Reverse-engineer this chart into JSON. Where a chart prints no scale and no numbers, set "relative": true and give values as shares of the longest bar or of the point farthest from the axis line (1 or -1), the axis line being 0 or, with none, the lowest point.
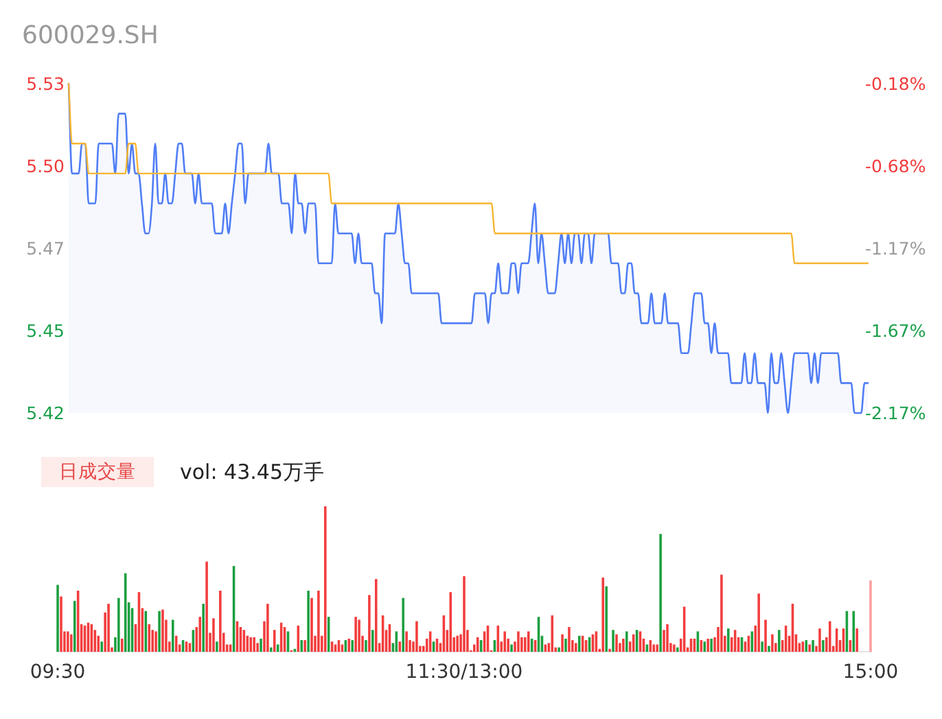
{
  "chart_data": [
    {
      "type": "area",
      "title": "600029.SH",
      "categories": [
        null,
        null,
        null,
        null,
        null,
        null,
        null,
        null,
        null,
        null,
        null,
        null,
        null,
        null,
        null,
        null,
        null,
        null,
        null,
        null,
        null,
        null,
        null,
        null,
        null,
        null,
        null,
        null,
        null,
        null,
        null,
        null,
        null,
        null,
        null,
        null,
        null,
        null,
        null,
        null,
        null,
        null,
        null,
        null,
        null,
        null,
        null,
        null,
        null,
        null,
        null,
        null,
        null,
        null,
        null,
        null,
        null,
        null,
        null,
        null,
        null,
        null,
        null,
        null,
        null,
        null,
        null,
        null,
        null,
        null,
        null,
        null,
        null,
        null,
        null,
        null,
        null,
        null,
        null,
        null,
        null,
        null,
        null,
        null,
        null,
        null,
        null,
        null,
        null,
        null,
        null,
        null,
        null,
        null,
        null,
        null,
        null,
        null,
        null,
        null,
        null,
        null,
        null,
        null,
        null,
        null,
        null,
        null,
        null,
        null,
        null,
        null,
        null,
        null,
        null,
        null,
        null,
        null,
        null,
        null,
        null,
        null,
        null,
        null,
        null,
        null,
        null,
        null,
        null,
        null,
        null,
        null,
        null,
        null,
        null,
        null,
        null,
        null,
        null,
        null,
        null,
        null,
        null,
        null,
        null,
        null,
        null,
        null,
        null,
        null,
        null,
        null,
        null,
        null,
        null,
        null,
        null,
        null,
        null,
        null,
        null,
        null,
        null,
        null,
        null,
        null,
        null,
        null,
        null,
        null,
        null,
        null,
        null,
        null,
        null,
        null,
        null,
        null,
        null,
        null,
        null,
        null,
        null,
        null,
        null,
        null,
        null,
        null,
        null,
        null,
        null,
        null,
        null,
        null,
        null,
        null,
        null,
        null,
        null,
        null,
        null,
        null,
        null,
        null,
        null,
        null,
        null,
        null,
        null,
        null,
        null,
        null,
        null,
        null,
        null,
        null,
        null,
        null,
        null,
        null,
        null,
        null,
        null,
        null,
        null,
        null,
        null,
        null,
        null,
        null,
        null,
        null,
        null,
        null,
        null,
        null,
        null,
        null,
        null,
        null,
        null
      ],
      "series": [
        {
          "color": "#4f7df5",
          "values": [
            5.53,
            5.5,
            5.5,
            5.5,
            5.51,
            5.51,
            5.49,
            5.49,
            5.49,
            5.51,
            5.51,
            5.51,
            5.51,
            5.51,
            5.5,
            5.52,
            5.52,
            5.52,
            5.5,
            5.51,
            5.5,
            5.5,
            5.49,
            5.48,
            5.48,
            5.49,
            5.51,
            5.49,
            5.49,
            5.5,
            5.49,
            5.49,
            5.5,
            5.51,
            5.51,
            5.5,
            5.5,
            5.5,
            5.49,
            5.5,
            5.49,
            5.49,
            5.49,
            5.49,
            5.48,
            5.48,
            5.48,
            5.49,
            5.48,
            5.49,
            5.5,
            5.51,
            5.51,
            5.49,
            5.5,
            5.5,
            5.5,
            5.5,
            5.5,
            5.5,
            5.51,
            5.5,
            5.5,
            5.5,
            5.49,
            5.49,
            5.49,
            5.48,
            5.5,
            5.49,
            5.49,
            5.48,
            5.49,
            5.49,
            5.49,
            5.47,
            5.47,
            5.47,
            5.47,
            5.47,
            5.49,
            5.48,
            5.48,
            5.48,
            5.48,
            5.48,
            5.47,
            5.48,
            5.47,
            5.47,
            5.47,
            5.47,
            5.46,
            5.46,
            5.45,
            5.48,
            5.48,
            5.48,
            5.48,
            5.49,
            5.48,
            5.47,
            5.47,
            5.46,
            5.46,
            5.46,
            5.46,
            5.46,
            5.46,
            5.46,
            5.46,
            5.46,
            5.45,
            5.45,
            5.45,
            5.45,
            5.45,
            5.45,
            5.45,
            5.45,
            5.45,
            5.45,
            5.46,
            5.46,
            5.46,
            5.46,
            5.45,
            5.46,
            5.46,
            5.47,
            5.46,
            5.46,
            5.46,
            5.47,
            5.47,
            5.46,
            5.47,
            5.47,
            5.47,
            5.48,
            5.49,
            5.47,
            5.48,
            5.47,
            5.46,
            5.46,
            5.46,
            5.47,
            5.48,
            5.47,
            5.48,
            5.47,
            5.48,
            5.48,
            5.47,
            5.48,
            5.48,
            5.47,
            5.48,
            5.48,
            5.48,
            5.48,
            5.48,
            5.47,
            5.47,
            5.47,
            5.46,
            5.46,
            5.47,
            5.47,
            5.46,
            5.46,
            5.45,
            5.45,
            5.45,
            5.46,
            5.45,
            5.45,
            5.45,
            5.46,
            5.45,
            5.45,
            5.45,
            5.45,
            5.44,
            5.44,
            5.44,
            5.45,
            5.46,
            5.46,
            5.46,
            5.45,
            5.45,
            5.44,
            5.45,
            5.44,
            5.44,
            5.44,
            5.44,
            5.43,
            5.43,
            5.43,
            5.43,
            5.44,
            5.43,
            5.43,
            5.44,
            5.43,
            5.43,
            5.43,
            5.42,
            5.44,
            5.43,
            5.43,
            5.44,
            5.43,
            5.42,
            5.43,
            5.44,
            5.44,
            5.44,
            5.44,
            5.44,
            5.43,
            5.44,
            5.43,
            5.44,
            5.44,
            5.44,
            5.44,
            5.44,
            5.44,
            5.43,
            5.43,
            5.43,
            5.43,
            5.42,
            5.42,
            5.42,
            5.43,
            5.43
          ]
        },
        {
          "type": "line",
          "color": "#f6b532",
          "values": [
            5.53,
            5.51,
            5.51,
            5.51,
            5.51,
            5.51,
            5.5,
            5.5,
            5.5,
            5.5,
            5.5,
            5.5,
            5.5,
            5.5,
            5.5,
            5.5,
            5.5,
            5.5,
            5.51,
            5.51,
            5.51,
            5.5,
            5.5,
            5.5,
            5.5,
            5.5,
            5.5,
            5.5,
            5.5,
            5.5,
            5.5,
            5.5,
            5.5,
            5.5,
            5.5,
            5.5,
            5.5,
            5.5,
            5.5,
            5.5,
            5.5,
            5.5,
            5.5,
            5.5,
            5.5,
            5.5,
            5.5,
            5.5,
            5.5,
            5.5,
            5.5,
            5.5,
            5.5,
            5.5,
            5.5,
            5.5,
            5.5,
            5.5,
            5.5,
            5.5,
            5.5,
            5.5,
            5.5,
            5.5,
            5.5,
            5.5,
            5.5,
            5.5,
            5.5,
            5.5,
            5.5,
            5.5,
            5.5,
            5.5,
            5.5,
            5.5,
            5.5,
            5.5,
            5.5,
            5.49,
            5.49,
            5.49,
            5.49,
            5.49,
            5.49,
            5.49,
            5.49,
            5.49,
            5.49,
            5.49,
            5.49,
            5.49,
            5.49,
            5.49,
            5.49,
            5.49,
            5.49,
            5.49,
            5.49,
            5.49,
            5.49,
            5.49,
            5.49,
            5.49,
            5.49,
            5.49,
            5.49,
            5.49,
            5.49,
            5.49,
            5.49,
            5.49,
            5.49,
            5.49,
            5.49,
            5.49,
            5.49,
            5.49,
            5.49,
            5.49,
            5.49,
            5.49,
            5.49,
            5.49,
            5.49,
            5.49,
            5.49,
            5.49,
            5.48,
            5.48,
            5.48,
            5.48,
            5.48,
            5.48,
            5.48,
            5.48,
            5.48,
            5.48,
            5.48,
            5.48,
            5.48,
            5.48,
            5.48,
            5.48,
            5.48,
            5.48,
            5.48,
            5.48,
            5.48,
            5.48,
            5.48,
            5.48,
            5.48,
            5.48,
            5.48,
            5.48,
            5.48,
            5.48,
            5.48,
            5.48,
            5.48,
            5.48,
            5.48,
            5.48,
            5.48,
            5.48,
            5.48,
            5.48,
            5.48,
            5.48,
            5.48,
            5.48,
            5.48,
            5.48,
            5.48,
            5.48,
            5.48,
            5.48,
            5.48,
            5.48,
            5.48,
            5.48,
            5.48,
            5.48,
            5.48,
            5.48,
            5.48,
            5.48,
            5.48,
            5.48,
            5.48,
            5.48,
            5.48,
            5.48,
            5.48,
            5.48,
            5.48,
            5.48,
            5.48,
            5.48,
            5.48,
            5.48,
            5.48,
            5.48,
            5.48,
            5.48,
            5.48,
            5.48,
            5.48,
            5.48,
            5.48,
            5.48,
            5.48,
            5.48,
            5.48,
            5.48,
            5.48,
            5.48,
            5.47,
            5.47,
            5.47,
            5.47,
            5.47,
            5.47,
            5.47,
            5.47,
            5.47,
            5.47,
            5.47,
            5.47,
            5.47,
            5.47,
            5.47,
            5.47,
            5.47,
            5.47,
            5.47,
            5.47,
            5.47,
            5.47,
            5.47
          ]
        }
      ],
      "ylim": [
        5.42,
        5.53
      ],
      "yticks": [
        5.42,
        {
          "value": 5.4475,
          "label": "5.45"
        },
        {
          "value": 5.475,
          "label": "5.47"
        },
        {
          "value": 5.5025,
          "label": "5.50"
        },
        5.53
      ],
      "y2lim": [
        -2.166,
        -0.1805
      ],
      "y2ticks": [
        {
          "value": -2.166,
          "label": "-2.17%"
        },
        {
          "value": -1.67,
          "label": "-1.67%"
        },
        {
          "value": -1.173,
          "label": "-1.17%"
        },
        {
          "value": -0.677,
          "label": "-0.68%"
        },
        {
          "value": -0.1805,
          "label": "-0.18%"
        }
      ],
      "tick_labels": "y"
    },
    {
      "type": "bar",
      "title": "日成交量",
      "annotations": [
        "vol: 43.45万手"
      ],
      "relative": true,
      "categories": [
        "09:30",
        null,
        null,
        null,
        null,
        null,
        null,
        null,
        null,
        null,
        null,
        null,
        null,
        null,
        null,
        null,
        null,
        null,
        null,
        null,
        null,
        null,
        null,
        null,
        null,
        null,
        null,
        null,
        null,
        null,
        null,
        null,
        null,
        null,
        null,
        null,
        null,
        null,
        null,
        null,
        null,
        null,
        null,
        null,
        null,
        null,
        null,
        null,
        null,
        null,
        null,
        null,
        null,
        null,
        null,
        null,
        null,
        null,
        null,
        null,
        null,
        null,
        null,
        null,
        null,
        null,
        null,
        null,
        null,
        null,
        null,
        null,
        null,
        null,
        null,
        null,
        null,
        null,
        null,
        null,
        null,
        null,
        null,
        null,
        null,
        null,
        null,
        null,
        null,
        null,
        null,
        null,
        null,
        null,
        null,
        null,
        null,
        null,
        null,
        null,
        null,
        null,
        null,
        null,
        null,
        null,
        null,
        null,
        null,
        null,
        null,
        null,
        null,
        null,
        null,
        null,
        null,
        null,
        null,
        null,
        "11:30/13:00",
        null,
        null,
        null,
        null,
        null,
        null,
        null,
        null,
        null,
        null,
        null,
        null,
        null,
        null,
        null,
        null,
        null,
        null,
        null,
        null,
        null,
        null,
        null,
        null,
        null,
        null,
        null,
        null,
        null,
        null,
        null,
        null,
        null,
        null,
        null,
        null,
        null,
        null,
        null,
        null,
        null,
        null,
        null,
        null,
        null,
        null,
        null,
        null,
        null,
        null,
        null,
        null,
        null,
        null,
        null,
        null,
        null,
        null,
        null,
        null,
        null,
        null,
        null,
        null,
        null,
        null,
        null,
        null,
        null,
        null,
        null,
        null,
        null,
        null,
        null,
        null,
        null,
        null,
        null,
        null,
        null,
        null,
        null,
        null,
        null,
        null,
        null,
        null,
        null,
        null,
        null,
        null,
        null,
        null,
        null,
        null,
        null,
        null,
        null,
        null,
        null,
        null,
        null,
        null,
        null,
        null,
        null,
        null,
        null,
        null,
        null,
        null,
        null,
        null,
        null,
        null,
        null,
        null,
        null,
        "15:00"
      ],
      "values": [
        0.46,
        0.38,
        0.14,
        0.14,
        0.12,
        0.35,
        0.42,
        0.19,
        0.18,
        0.2,
        0.19,
        0.15,
        0.11,
        0.07,
        0.27,
        0.33,
        0.03,
        0.1,
        0.37,
        0.09,
        0.54,
        0.34,
        0.3,
        0.19,
        0.41,
        0.3,
        0.28,
        0.19,
        0.15,
        0.14,
        0.28,
        0.29,
        0.22,
        0.07,
        0.22,
        0.11,
        0.05,
        0.08,
        0.07,
        0.06,
        0.15,
        0.17,
        0.24,
        0.33,
        0.62,
        0.13,
        0.23,
        0.07,
        0.42,
        0.13,
        0.05,
        0.05,
        0.59,
        0.21,
        0.17,
        0.15,
        0.11,
        0.1,
        0.1,
        0.06,
        0.09,
        0.21,
        0.33,
        0.03,
        0.15,
        0.05,
        0.2,
        0.17,
        0.14,
        0.01,
        0.02,
        0.18,
        0.08,
        0.08,
        0.42,
        0.37,
        0.11,
        0.42,
        0.11,
        1,
        0.24,
        0.07,
        0.05,
        0.08,
        0.05,
        0.08,
        0.09,
        0.08,
        0.24,
        0.22,
        0.11,
        0.08,
        0.39,
        0.15,
        0.5,
        0.06,
        0.25,
        0.15,
        0.19,
        0.06,
        0.14,
        0.07,
        0.37,
        0.14,
        0.08,
        0.07,
        0.21,
        0.04,
        0.04,
        0.09,
        0.14,
        0.07,
        0.09,
        0.06,
        0.25,
        0.15,
        0.41,
        0.1,
        0.11,
        0.12,
        0.52,
        0.15,
        0.01,
        0.05,
        0.1,
        0.08,
        0.14,
        0.18,
        0.01,
        0.08,
        0.18,
        0.07,
        0.14,
        0.09,
        0.05,
        0.07,
        0.14,
        0.1,
        0.1,
        0.14,
        0.09,
        0.08,
        0.24,
        0.11,
        0.05,
        0.06,
        0.25,
        0.03,
        0.03,
        0.12,
        0.09,
        0.17,
        0.08,
        0.06,
        0.11,
        0.11,
        0.08,
        0.1,
        0.12,
        0.14,
        0.02,
        0.51,
        0.45,
        0.02,
        0.15,
        0.12,
        0.06,
        0.09,
        0.14,
        0.07,
        0.12,
        0.15,
        0.14,
        0.09,
        0.05,
        0.08,
        0.05,
        0.05,
        0.81,
        0.15,
        0.19,
        0.06,
        0.05,
        0.03,
        0.09,
        0.31,
        0.03,
        0.09,
        0.09,
        0.14,
        0.08,
        0.07,
        0.09,
        0.09,
        0.1,
        0.17,
        0.53,
        0.11,
        0.16,
        0.1,
        0.15,
        0.1,
        0.1,
        0.07,
        0.11,
        0.14,
        0.18,
        0.4,
        0.07,
        0.22,
        0.04,
        0.12,
        0.06,
        0.15,
        0.08,
        0.18,
        0.11,
        0.33,
        0.12,
        0.06,
        0.07,
        0.08,
        0.05,
        0.08,
        0.04,
        0.16,
        0.08,
        0.1,
        0.21,
        0.04,
        0.16,
        0.08,
        0.16,
        0.28,
        0.08,
        0.28,
        0.16,
        null,
        null,
        null,
        0.49
      ],
      "colors": [
        "#1c9f3f",
        "#f23d3d",
        "#f23d3d",
        "#f23d3d",
        "#f23d3d",
        "#1c9f3f",
        "#f23d3d",
        "#f23d3d",
        "#f23d3d",
        "#f23d3d",
        "#f23d3d",
        "#f23d3d",
        "#f23d3d",
        "#1c9f3f",
        "#f23d3d",
        "#f23d3d",
        "#f23d3d",
        "#1c9f3f",
        "#1c9f3f",
        "#f23d3d",
        "#1c9f3f",
        "#1c9f3f",
        "#1c9f3f",
        "#f23d3d",
        "#f23d3d",
        "#f23d3d",
        "#1c9f3f",
        "#f23d3d",
        "#f23d3d",
        "#f23d3d",
        "#1c9f3f",
        "#f23d3d",
        "#f23d3d",
        "#f23d3d",
        "#1c9f3f",
        "#f23d3d",
        "#f23d3d",
        "#1c9f3f",
        "#f23d3d",
        "#f23d3d",
        "#1c9f3f",
        "#f23d3d",
        "#f23d3d",
        "#1c9f3f",
        "#f23d3d",
        "#f23d3d",
        "#f23d3d",
        "#1c9f3f",
        "#f23d3d",
        "#f23d3d",
        "#f23d3d",
        "#f23d3d",
        "#1c9f3f",
        "#f23d3d",
        "#f23d3d",
        "#f23d3d",
        "#f23d3d",
        "#f23d3d",
        "#f23d3d",
        "#f23d3d",
        "#1c9f3f",
        "#f23d3d",
        "#f23d3d",
        "#1c9f3f",
        "#f23d3d",
        "#1c9f3f",
        "#f23d3d",
        "#f23d3d",
        "#1c9f3f",
        "#f23d3d",
        "#1c9f3f",
        "#f23d3d",
        "#1c9f3f",
        "#f23d3d",
        "#1c9f3f",
        "#f23d3d",
        "#f23d3d",
        "#f23d3d",
        "#f23d3d",
        "#f23d3d",
        "#1c9f3f",
        "#f23d3d",
        "#f23d3d",
        "#f23d3d",
        "#f23d3d",
        "#1c9f3f",
        "#f23d3d",
        "#1c9f3f",
        "#f23d3d",
        "#f23d3d",
        "#f23d3d",
        "#1c9f3f",
        "#f23d3d",
        "#1c9f3f",
        "#f23d3d",
        "#f23d3d",
        "#f23d3d",
        "#f23d3d",
        "#f23d3d",
        "#1c9f3f",
        "#1c9f3f",
        "#f23d3d",
        "#1c9f3f",
        "#f23d3d",
        "#f23d3d",
        "#f23d3d",
        "#f23d3d",
        "#f23d3d",
        "#f23d3d",
        "#f23d3d",
        "#f23d3d",
        "#1c9f3f",
        "#f23d3d",
        "#f23d3d",
        "#f23d3d",
        "#f23d3d",
        "#f23d3d",
        "#f23d3d",
        "#f23d3d",
        "#f23d3d",
        "#f23d3d",
        "#f23d3d",
        "#f23d3d",
        "#f23d3d",
        "#f23d3d",
        "#1c9f3f",
        "#f23d3d",
        "#f23d3d",
        "#f23d3d",
        "#1c9f3f",
        "#f23d3d",
        "#f23d3d",
        "#f23d3d",
        "#f23d3d",
        "#1c9f3f",
        "#f23d3d",
        "#f23d3d",
        "#f23d3d",
        "#f23d3d",
        "#f23d3d",
        "#1c9f3f",
        "#f23d3d",
        "#1c9f3f",
        "#1c9f3f",
        "#f23d3d",
        "#f23d3d",
        "#f23d3d",
        "#f23d3d",
        "#1c9f3f",
        "#f23d3d",
        "#1c9f3f",
        "#f23d3d",
        "#f23d3d",
        "#f23d3d",
        "#1c9f3f",
        "#f23d3d",
        "#f23d3d",
        "#1c9f3f",
        "#f23d3d",
        "#f23d3d",
        "#f23d3d",
        "#f23d3d",
        "#1c9f3f",
        "#f23d3d",
        "#1c9f3f",
        "#f23d3d",
        "#f23d3d",
        "#f23d3d",
        "#1c9f3f",
        "#f23d3d",
        "#f23d3d",
        "#1c9f3f",
        "#f23d3d",
        "#f23d3d",
        "#1c9f3f",
        "#f23d3d",
        "#f23d3d",
        "#f23d3d",
        "#1c9f3f",
        "#f23d3d",
        "#f23d3d",
        "#f23d3d",
        "#f23d3d",
        "#1c9f3f",
        "#f23d3d",
        "#f23d3d",
        "#f23d3d",
        "#f23d3d",
        "#f23d3d",
        "#1c9f3f",
        "#f23d3d",
        "#1c9f3f",
        "#f23d3d",
        "#1c9f3f",
        "#f23d3d",
        "#f23d3d",
        "#f23d3d",
        "#f23d3d",
        "#1c9f3f",
        "#f23d3d",
        "#f23d3d",
        "#f23d3d",
        "#1c9f3f",
        "#f23d3d",
        "#f23d3d",
        "#1c9f3f",
        "#f23d3d",
        "#f23d3d",
        "#1c9f3f",
        "#f23d3d",
        "#1c9f3f",
        "#f23d3d",
        "#f23d3d",
        "#1c9f3f",
        "#f23d3d",
        "#f23d3d",
        "#f23d3d",
        "#f23d3d",
        "#f23d3d",
        "#f23d3d",
        "#f23d3d",
        "#1c9f3f",
        "#f23d3d",
        "#1c9f3f",
        "#f23d3d",
        "#f23d3d",
        "#1c9f3f",
        "#f23d3d",
        "#f23d3d",
        "#f23d3d",
        "#f23d3d",
        "#f23d3d",
        "#f23d3d",
        "#1c9f3f",
        "#f23d3d",
        "#1c9f3f",
        "#f23d3d",
        null,
        null,
        null,
        "#ff9f9f"
      ],
      "tick_labels": "x"
    }
  ]
}
